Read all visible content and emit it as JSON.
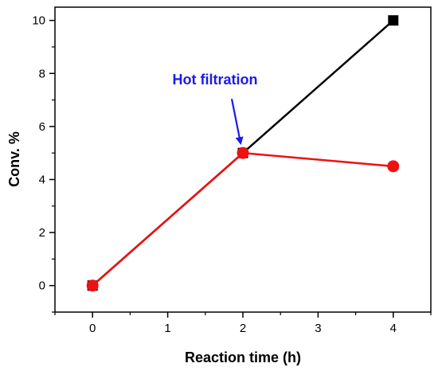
{
  "chart_data": {
    "type": "line",
    "xlabel": "Reaction time (h)",
    "ylabel": "Conv. %",
    "xlim": [
      -0.5,
      4.5
    ],
    "ylim": [
      -1,
      10.5
    ],
    "xticks": [
      0,
      1,
      2,
      3,
      4
    ],
    "yticks": [
      0,
      2,
      4,
      6,
      8,
      10
    ],
    "grid": false,
    "series": [
      {
        "x": [
          0,
          2,
          4
        ],
        "y": [
          0,
          5,
          10
        ],
        "color": "#000000",
        "marker": "square"
      },
      {
        "x": [
          0,
          2,
          4
        ],
        "y": [
          0,
          5,
          4.5
        ],
        "color": "#ee1111",
        "marker": "circle"
      }
    ],
    "annotations": [
      {
        "text": "Hot filtration",
        "color": "#1a1aee",
        "arrow_to": [
          2,
          5
        ]
      }
    ]
  }
}
